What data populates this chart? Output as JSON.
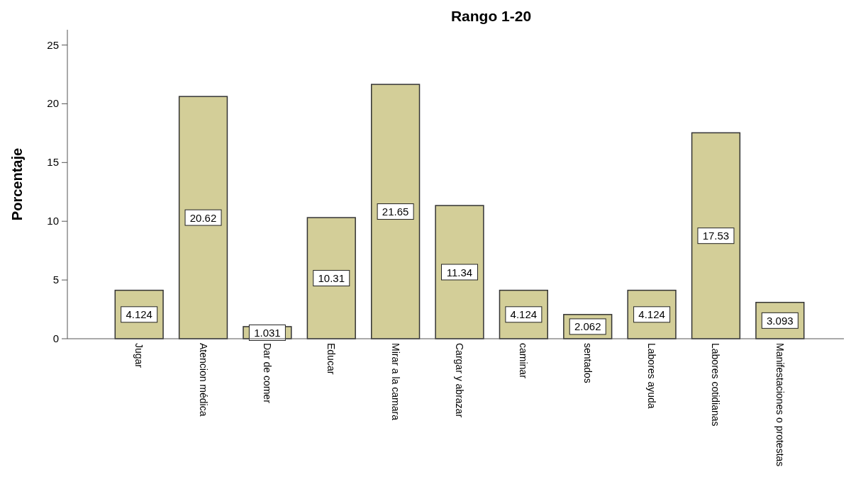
{
  "chart_data": {
    "type": "bar",
    "title": "Rango 1-20",
    "ylabel": "Porcentaje",
    "categories": [
      "Jugar",
      "Atencion médica",
      "Dar de comer",
      "Educar",
      "Mirar a la camara",
      "Cargar y abrazar",
      "caminar",
      "sentados",
      "Labores ayuda",
      "Labores cotidianas",
      "Manifestaciones o protestas"
    ],
    "values": [
      4.124,
      20.62,
      1.031,
      10.31,
      21.65,
      11.34,
      4.124,
      2.062,
      4.124,
      17.53,
      3.093
    ],
    "color": "#d3ce98",
    "ylim": [
      0,
      26.3
    ],
    "yticks": [
      0,
      5,
      10,
      15,
      20,
      25
    ],
    "data_labels": true,
    "grid": false
  }
}
